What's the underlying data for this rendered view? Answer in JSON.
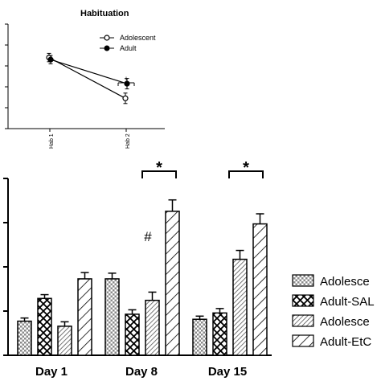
{
  "chart_data": [
    {
      "type": "line",
      "title": "Habituation",
      "xlabel": "",
      "ylabel": "",
      "categories": [
        "Hab 1",
        "Hab 2"
      ],
      "series": [
        {
          "name": "Adolescent",
          "values": [
            0.68,
            0.29
          ],
          "errors": [
            0.04,
            0.05
          ],
          "marker": "open-circle"
        },
        {
          "name": "Adult",
          "values": [
            0.66,
            0.43
          ],
          "errors": [
            0.04,
            0.05
          ],
          "marker": "filled-circle"
        }
      ],
      "ylim": [
        0,
        1
      ],
      "grid": false,
      "legend_position": "top-right",
      "annotations": [
        {
          "text": "+",
          "at_category": "Hab 2"
        }
      ]
    },
    {
      "type": "bar",
      "title": "",
      "xlabel": "",
      "ylabel": "",
      "categories": [
        "Day 1",
        "Day 8",
        "Day 15"
      ],
      "series": [
        {
          "name": "Adolesce",
          "pattern": "checker",
          "values": [
            0.54,
            1.21,
            0.57
          ],
          "errors": [
            0.05,
            0.09,
            0.05
          ]
        },
        {
          "name": "Adult-SAL",
          "pattern": "crosshatch",
          "values": [
            0.9,
            0.65,
            0.67
          ],
          "errors": [
            0.06,
            0.07,
            0.07
          ]
        },
        {
          "name": "Adolesce",
          "pattern": "diagonal-dense",
          "values": [
            0.46,
            0.87,
            1.52
          ],
          "errors": [
            0.07,
            0.13,
            0.14
          ]
        },
        {
          "name": "Adult-EtC",
          "pattern": "diagonal-sparse",
          "values": [
            1.21,
            2.28,
            2.08
          ],
          "errors": [
            0.1,
            0.18,
            0.16
          ]
        }
      ],
      "ylim": [
        0,
        2.8
      ],
      "grid": false,
      "legend_position": "right",
      "annotations": [
        {
          "text": "*",
          "bracket": [
            "Day 8",
            "series 2",
            "series 4"
          ]
        },
        {
          "text": "*",
          "bracket": [
            "Day 15",
            "series 2",
            "series 4"
          ]
        },
        {
          "text": "#",
          "above": [
            "Day 8",
            "series 3"
          ]
        }
      ]
    }
  ]
}
